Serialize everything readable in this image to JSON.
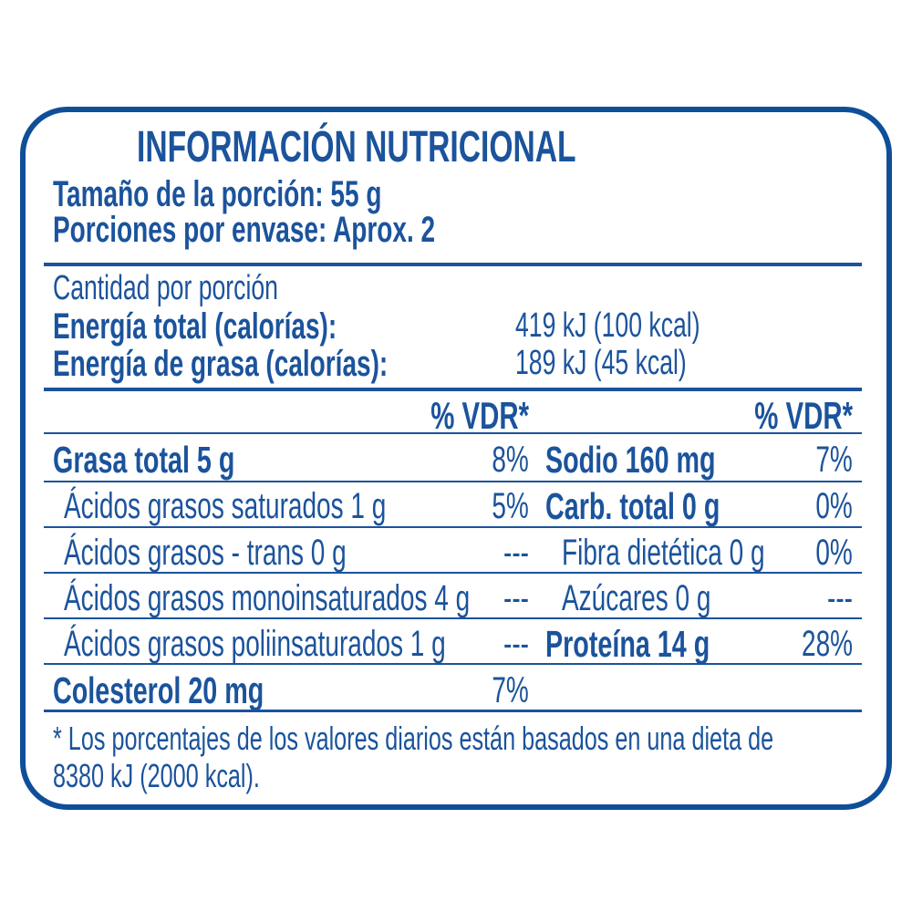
{
  "title": "INFORMACIÓN NUTRICIONAL",
  "serving_size": "Tamaño de la porción: 55 g",
  "servings_per_container": "Porciones por envase: Aprox. 2",
  "amount_per_serving": "Cantidad por porción",
  "energy_total": {
    "label": "Energía total (calorías):",
    "value": "419 kJ (100 kcal)"
  },
  "energy_fat": {
    "label": "Energía de grasa (calorías):",
    "value": "189 kJ (45 kcal)"
  },
  "dv_header_left": "% VDR*",
  "dv_header_right": "% VDR*",
  "left_rows": [
    {
      "label": "Grasa total 5 g",
      "dv": "8%"
    },
    {
      "label": "Ácidos grasos saturados 1 g",
      "dv": "5%"
    },
    {
      "label": "Ácidos grasos - trans 0 g",
      "dv": "---"
    },
    {
      "label": "Ácidos grasos monoinsaturados 4 g",
      "dv": "---"
    },
    {
      "label": "Ácidos grasos poliinsaturados 1 g",
      "dv": "---"
    },
    {
      "label": "Colesterol 20 mg",
      "dv": "7%"
    }
  ],
  "right_rows": [
    {
      "label": "Sodio 160 mg",
      "dv": "7%"
    },
    {
      "label": "Carb. total 0 g",
      "dv": "0%"
    },
    {
      "label": "Fibra dietética 0 g",
      "dv": "0%"
    },
    {
      "label": "Azúcares 0 g",
      "dv": "---"
    },
    {
      "label": "Proteína 14 g",
      "dv": "28%"
    }
  ],
  "footnote_line1": "* Los porcentajes de los valores diarios están basados en una dieta de",
  "footnote_line2": "8380 kJ (2000 kcal).",
  "colors": {
    "brand_blue": "#1b539c",
    "border": "#0f4f99"
  }
}
